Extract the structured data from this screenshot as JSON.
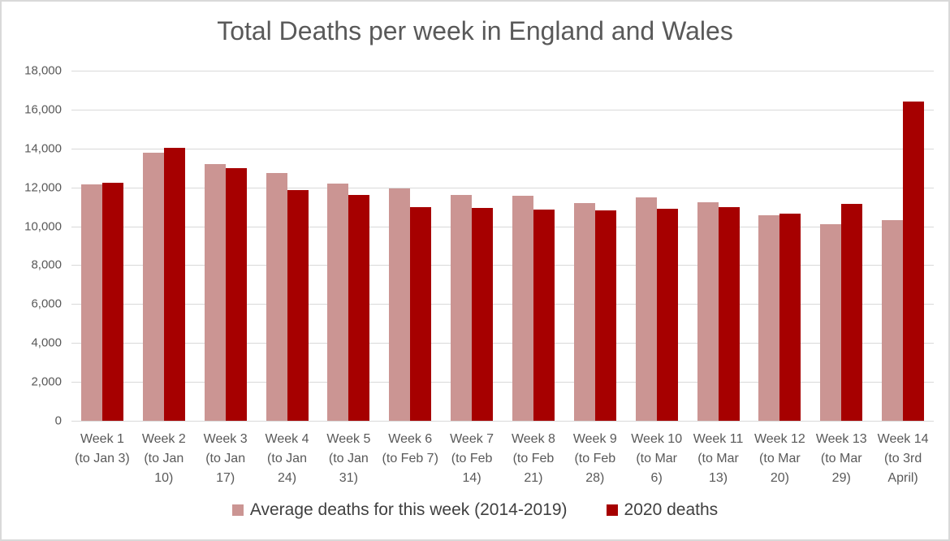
{
  "chart_data": {
    "type": "bar",
    "title": "Total Deaths per week in England and Wales",
    "categories": [
      "Week 1 (to Jan 3)",
      "Week 2 (to Jan 10)",
      "Week 3 (to Jan 17)",
      "Week 4 (to Jan 24)",
      "Week 5 (to Jan 31)",
      "Week 6 (to Feb 7)",
      "Week 7 (to Feb 14)",
      "Week 8 (to Feb 21)",
      "Week 9 (to Feb 28)",
      "Week 10 (to Mar 6)",
      "Week 11 (to Mar 13)",
      "Week 12 (to Mar 20)",
      "Week 13 (to Mar 29)",
      "Week 14 (to 3rd April)"
    ],
    "category_label_lines": [
      [
        "Week 1",
        "(to Jan 3)"
      ],
      [
        "Week 2",
        "(to Jan",
        "10)"
      ],
      [
        "Week 3",
        "(to Jan",
        "17)"
      ],
      [
        "Week 4",
        "(to Jan",
        "24)"
      ],
      [
        "Week 5",
        "(to Jan",
        "31)"
      ],
      [
        "Week 6",
        "(to Feb 7)"
      ],
      [
        "Week 7",
        "(to Feb",
        "14)"
      ],
      [
        "Week 8",
        "(to Feb",
        "21)"
      ],
      [
        "Week 9",
        "(to Feb",
        "28)"
      ],
      [
        "Week 10",
        "(to Mar",
        "6)"
      ],
      [
        "Week 11",
        "(to Mar",
        "13)"
      ],
      [
        "Week 12",
        "(to Mar",
        "20)"
      ],
      [
        "Week 13",
        "(to Mar",
        "29)"
      ],
      [
        "Week 14",
        "(to 3rd",
        "April)"
      ]
    ],
    "series": [
      {
        "name": "Average deaths for this week (2014-2019)",
        "color": "#CB9593",
        "values": [
          12150,
          13800,
          13200,
          12750,
          12200,
          11950,
          11600,
          11550,
          11200,
          11500,
          11250,
          10550,
          10100,
          10300
        ]
      },
      {
        "name": "2020 deaths",
        "color": "#A60000",
        "values": [
          12250,
          14050,
          13000,
          11850,
          11600,
          11000,
          10950,
          10850,
          10800,
          10900,
          11000,
          10650,
          11150,
          16400
        ]
      }
    ],
    "xlabel": "",
    "ylabel": "",
    "ylim": [
      0,
      18000
    ],
    "ytick_interval": 2000,
    "yticks": [
      "18,000",
      "16,000",
      "14,000",
      "12,000",
      "10,000",
      "8,000",
      "6,000",
      "4,000",
      "2,000",
      "0"
    ],
    "grid": true,
    "legend_position": "bottom"
  },
  "colors": {
    "text": "#595959",
    "legend_text": "#404040",
    "gridline": "#D9D9D9",
    "frame_border": "#D9D9D9",
    "background": "#FFFFFF"
  }
}
